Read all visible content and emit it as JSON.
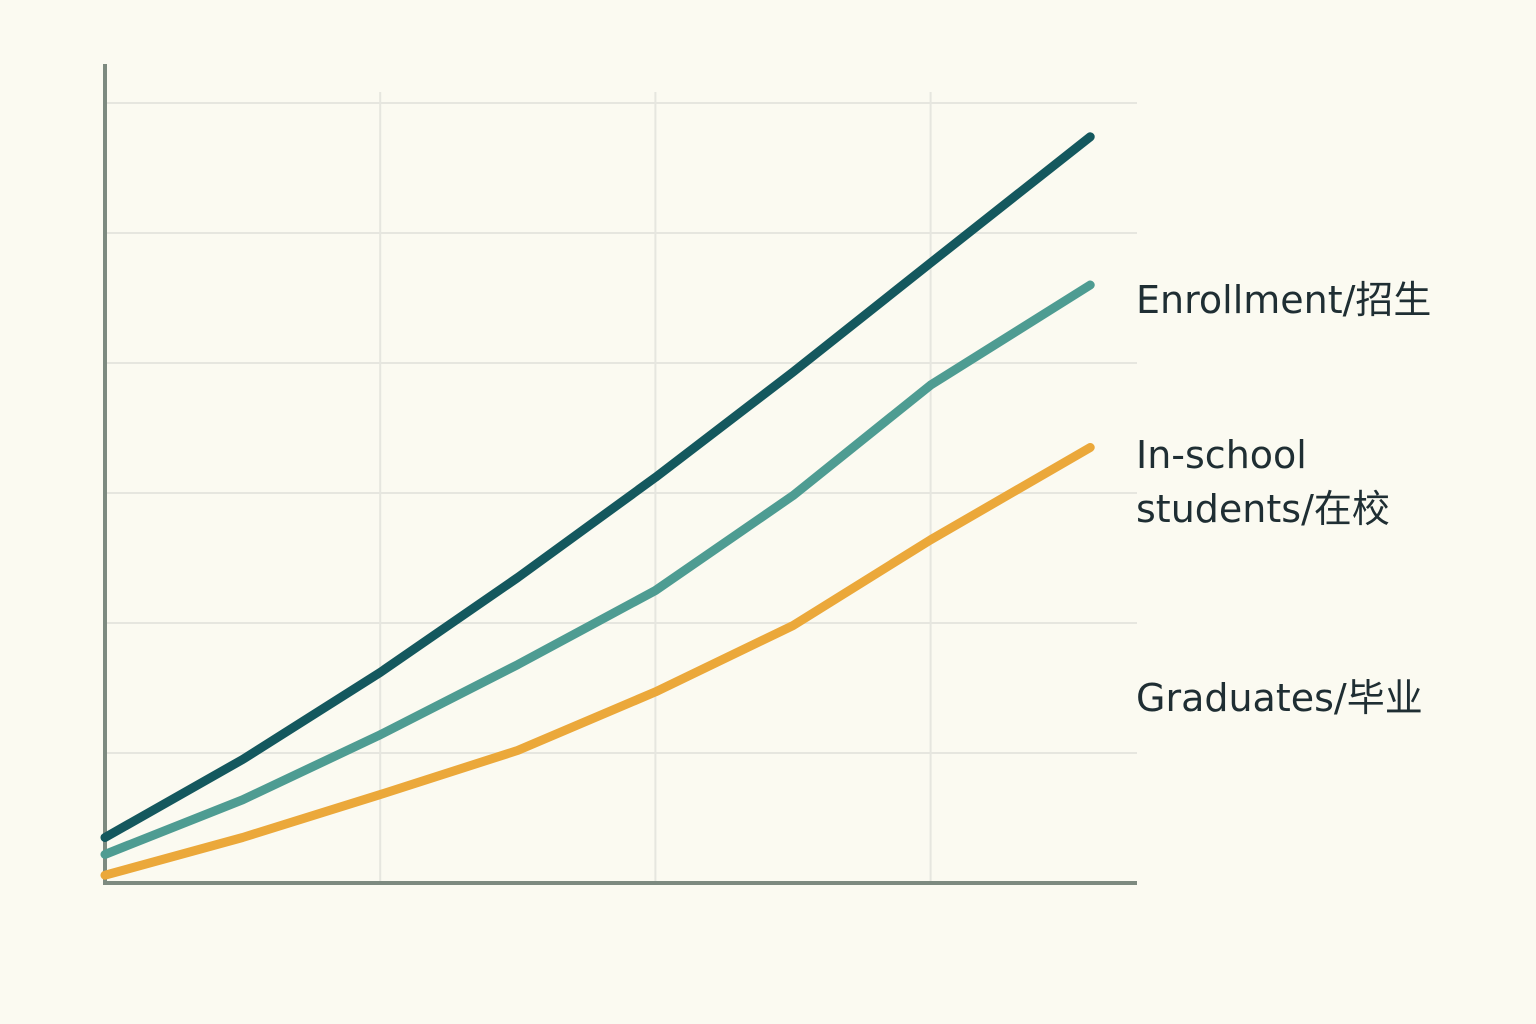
{
  "chart_data": {
    "type": "line",
    "x": [
      0,
      0.5,
      1,
      1.5,
      2,
      2.5,
      3,
      3.58
    ],
    "series": [
      {
        "name": "Enrollment/招生",
        "color": "#14585e",
        "values": [
          0.35,
          0.95,
          1.62,
          2.35,
          3.12,
          3.93,
          4.77,
          5.74
        ]
      },
      {
        "name": "In-school students/在校",
        "color": "#4e9c92",
        "values": [
          0.22,
          0.64,
          1.14,
          1.68,
          2.25,
          2.98,
          3.83,
          4.6
        ]
      },
      {
        "name": "Graduates/毕业",
        "color": "#eba83a",
        "values": [
          0.06,
          0.35,
          0.68,
          1.02,
          1.47,
          1.98,
          2.64,
          3.35
        ]
      }
    ],
    "xlim": [
      0,
      3.75
    ],
    "xticks": [
      1,
      2,
      3
    ],
    "ylim": [
      0,
      6.3
    ],
    "yticks": [
      1,
      2,
      3,
      4,
      5,
      6
    ],
    "grid": true
  }
}
